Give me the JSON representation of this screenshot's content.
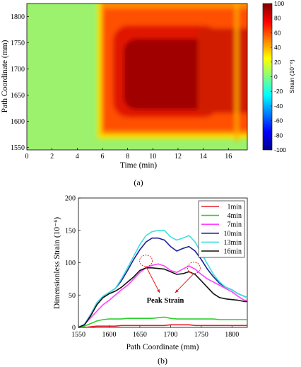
{
  "chart_data": [
    {
      "type": "heatmap",
      "panel_label": "(a)",
      "xlabel": "Time (min)",
      "ylabel": "Path Coordinate (mm)",
      "xlim": [
        0,
        17.5
      ],
      "ylim": [
        1545,
        1825
      ],
      "xticks": [
        "0",
        "2",
        "4",
        "6",
        "8",
        "10",
        "12",
        "14",
        "16"
      ],
      "yticks": [
        "1550",
        "1600",
        "1650",
        "1700",
        "1750",
        "1800"
      ],
      "colorbar": {
        "label": "Strain (10⁻⁶)",
        "range": [
          -100,
          100
        ],
        "ticks": [
          "100",
          "80",
          "60",
          "40",
          "20",
          "0",
          "-20",
          "-40",
          "-60",
          "-80",
          "-100"
        ],
        "colormap": [
          "#00008f",
          "#0000ff",
          "#0080ff",
          "#00ffff",
          "#80ff80",
          "#ffff00",
          "#ff8000",
          "#ff0000",
          "#800000"
        ]
      },
      "field": {
        "background_strain": 10,
        "active_time_range": [
          5.6,
          17.5
        ],
        "active_path_range": [
          1570,
          1820
        ],
        "peak_strain": 100,
        "strong_zone_time": [
          7.0,
          13.0
        ],
        "strong_zone_path": [
          1625,
          1790
        ]
      }
    },
    {
      "type": "line",
      "panel_label": "(b)",
      "xlabel": "Path Coordinate (mm)",
      "ylabel": "Dimensionless Strain (10⁻⁶)",
      "xlim": [
        1550,
        1825
      ],
      "ylim": [
        0,
        200
      ],
      "xticks": [
        "1550",
        "1600",
        "1650",
        "1700",
        "1750",
        "1800"
      ],
      "yticks": [
        "0",
        "50",
        "100",
        "150",
        "200"
      ],
      "annotation": {
        "text": "Peak Strain",
        "peaks_x": [
          1660,
          1738
        ],
        "peaks_y": [
          103,
          92
        ]
      },
      "x": [
        1550,
        1560,
        1570,
        1580,
        1590,
        1600,
        1610,
        1620,
        1630,
        1640,
        1650,
        1660,
        1670,
        1680,
        1690,
        1700,
        1710,
        1720,
        1730,
        1740,
        1750,
        1760,
        1770,
        1780,
        1790,
        1800,
        1810,
        1820,
        1825
      ],
      "series": [
        {
          "name": "1min",
          "color": "#e8202a",
          "values": [
            0,
            0,
            1,
            2,
            2,
            2,
            2,
            3,
            3,
            3,
            3,
            3,
            3,
            3,
            3,
            4,
            4,
            4,
            4,
            3,
            3,
            3,
            3,
            3,
            3,
            3,
            3,
            3,
            3
          ]
        },
        {
          "name": "4min",
          "color": "#2bd12b",
          "values": [
            0,
            2,
            6,
            10,
            12,
            13,
            13,
            13,
            14,
            14,
            14,
            14,
            14,
            15,
            16,
            14,
            13,
            13,
            13,
            13,
            13,
            13,
            13,
            12,
            12,
            12,
            12,
            12,
            12
          ]
        },
        {
          "name": "7min",
          "color": "#ff40ff",
          "values": [
            0,
            5,
            15,
            25,
            35,
            42,
            50,
            58,
            65,
            75,
            85,
            92,
            96,
            98,
            95,
            88,
            85,
            90,
            95,
            90,
            82,
            75,
            70,
            65,
            60,
            55,
            48,
            42,
            42
          ]
        },
        {
          "name": "10min",
          "color": "#1e1e96",
          "values": [
            0,
            5,
            20,
            38,
            48,
            54,
            60,
            72,
            88,
            105,
            120,
            132,
            138,
            138,
            135,
            125,
            118,
            122,
            125,
            118,
            105,
            90,
            78,
            68,
            62,
            58,
            52,
            48,
            46
          ]
        },
        {
          "name": "13min",
          "color": "#40e0e0",
          "values": [
            0,
            5,
            20,
            38,
            48,
            54,
            60,
            75,
            92,
            110,
            128,
            142,
            148,
            150,
            150,
            140,
            135,
            138,
            142,
            132,
            115,
            98,
            82,
            70,
            62,
            58,
            52,
            48,
            46
          ]
        },
        {
          "name": "16min",
          "color": "#111111",
          "values": [
            0,
            4,
            18,
            35,
            46,
            52,
            56,
            62,
            70,
            78,
            88,
            92,
            92,
            91,
            90,
            86,
            82,
            83,
            86,
            82,
            72,
            62,
            52,
            46,
            44,
            43,
            42,
            40,
            40
          ]
        }
      ]
    }
  ]
}
